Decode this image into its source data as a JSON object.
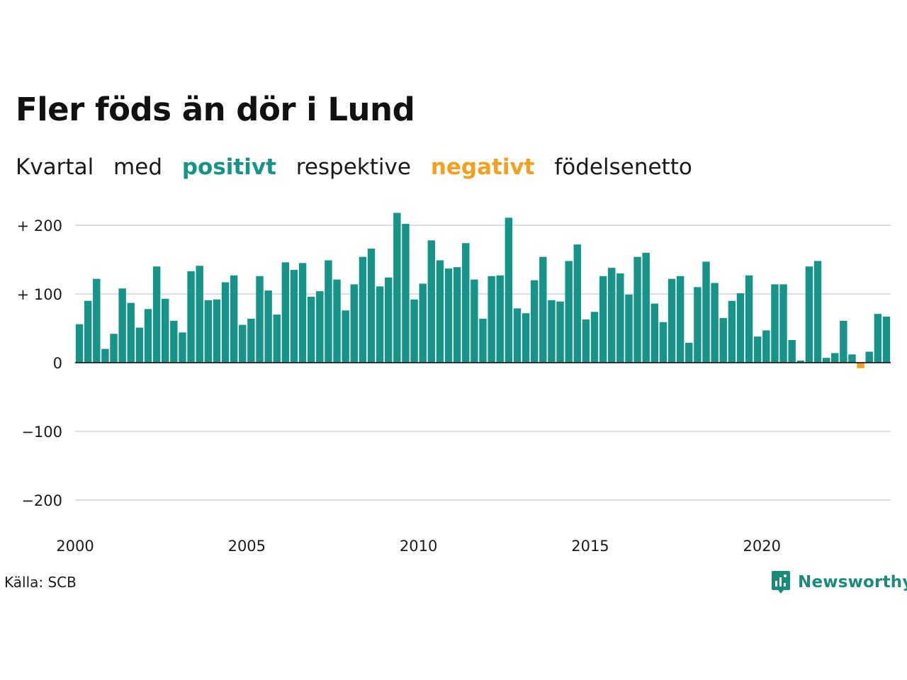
{
  "title": "Fler föds än dör i Lund",
  "subtitle": {
    "w1": "Kvartal",
    "w2": "med",
    "positive": "positivt",
    "w3": "respektive",
    "negative": "negativt",
    "w4": "födelsenetto"
  },
  "source": "Källa: SCB",
  "brand": "Newsworthy",
  "colors": {
    "positive": "#17948a",
    "negative": "#f2a01e",
    "grid": "#dcdce4",
    "baseline": "#000000",
    "brand": "#1a8a7a"
  },
  "chart_data": {
    "type": "bar",
    "x_start": "2000 Q1",
    "interval": "quarter",
    "values": [
      56,
      90,
      122,
      20,
      42,
      108,
      87,
      51,
      78,
      140,
      93,
      61,
      44,
      133,
      141,
      91,
      92,
      117,
      127,
      55,
      64,
      126,
      105,
      70,
      146,
      135,
      145,
      96,
      104,
      149,
      121,
      76,
      114,
      154,
      166,
      111,
      124,
      218,
      202,
      92,
      115,
      178,
      149,
      137,
      139,
      174,
      121,
      64,
      126,
      127,
      211,
      79,
      72,
      120,
      154,
      91,
      89,
      148,
      172,
      63,
      74,
      126,
      138,
      130,
      99,
      154,
      160,
      86,
      59,
      122,
      126,
      29,
      110,
      147,
      116,
      65,
      90,
      101,
      127,
      38,
      47,
      114,
      114,
      33,
      3,
      140,
      148,
      7,
      14,
      61,
      12,
      -8,
      16,
      71,
      67
    ],
    "ylim": [
      -230,
      230
    ],
    "yticks": [
      {
        "value": 200,
        "label": "+ 200"
      },
      {
        "value": 100,
        "label": "+ 100"
      },
      {
        "value": 0,
        "label": "0"
      },
      {
        "value": -100,
        "label": "−100"
      },
      {
        "value": -200,
        "label": "−200"
      }
    ],
    "xticks": [
      {
        "year": 2000,
        "label": "2000"
      },
      {
        "year": 2005,
        "label": "2005"
      },
      {
        "year": 2010,
        "label": "2010"
      },
      {
        "year": 2015,
        "label": "2015"
      },
      {
        "year": 2020,
        "label": "2020"
      }
    ],
    "grid": true,
    "legend": "none"
  }
}
